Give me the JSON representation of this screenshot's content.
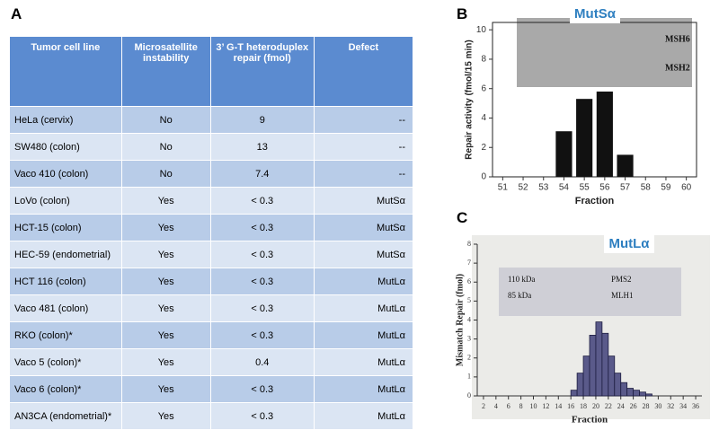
{
  "panels": [
    "A",
    "B",
    "C"
  ],
  "table": {
    "header": [
      "Tumor cell line",
      "Microsatellite instability",
      "3’ G-T heteroduplex repair (fmol)",
      "Defect"
    ],
    "rows": [
      [
        "HeLa (cervix)",
        "No",
        "9",
        "--"
      ],
      [
        "SW480 (colon)",
        "No",
        "13",
        "--"
      ],
      [
        "Vaco 410 (colon)",
        "No",
        "7.4",
        "--"
      ],
      [
        "LoVo (colon)",
        "Yes",
        "< 0.3",
        "MutSα"
      ],
      [
        "HCT-15 (colon)",
        "Yes",
        "< 0.3",
        "MutSα"
      ],
      [
        "HEC-59 (endometrial)",
        "Yes",
        "< 0.3",
        "MutSα"
      ],
      [
        "HCT 116 (colon)",
        "Yes",
        "< 0.3",
        "MutLα"
      ],
      [
        "Vaco 481 (colon)",
        "Yes",
        "< 0.3",
        "MutLα"
      ],
      [
        "RKO (colon)*",
        "Yes",
        "< 0.3",
        "MutLα"
      ],
      [
        "Vaco 5 (colon)*",
        "Yes",
        "0.4",
        "MutLα"
      ],
      [
        "Vaco 6 (colon)*",
        "Yes",
        "< 0.3",
        "MutLα"
      ],
      [
        "AN3CA (endometrial)*",
        "Yes",
        "< 0.3",
        "MutLα"
      ]
    ]
  },
  "chart_data": [
    {
      "type": "bar",
      "title": "MutSα",
      "x_label": "Fraction",
      "y_label": "Repair activity (fmol/15 min)",
      "x": [
        54,
        55,
        56,
        57
      ],
      "values": [
        3.1,
        5.3,
        5.8,
        1.5
      ],
      "color": "#111111",
      "xlim": [
        50.5,
        60.5
      ],
      "xticks": [
        51,
        52,
        53,
        54,
        55,
        56,
        57,
        58,
        59,
        60
      ],
      "ylim": [
        0,
        10.5
      ],
      "yticks": [
        0,
        2,
        4,
        6,
        8,
        10
      ],
      "annotations": [
        "MSH6",
        "MSH2"
      ]
    },
    {
      "type": "histogram",
      "title": "MutLα",
      "x_label": "Fraction",
      "y_label": "Mismatch Repair (fmol)",
      "bins": [
        16,
        17,
        18,
        19,
        20,
        21,
        22,
        23,
        24,
        25,
        26,
        27,
        28,
        29
      ],
      "values": [
        0.3,
        1.2,
        2.1,
        3.2,
        3.9,
        3.3,
        2.1,
        1.2,
        0.7,
        0.4,
        0.3,
        0.2,
        0.1
      ],
      "color": "#5a5a8a",
      "xlim": [
        1,
        37
      ],
      "xticks": [
        2,
        4,
        6,
        8,
        10,
        12,
        14,
        16,
        18,
        20,
        22,
        24,
        26,
        28,
        30,
        32,
        34,
        36
      ],
      "ylim": [
        0,
        8
      ],
      "yticks": [
        0,
        1,
        2,
        3,
        4,
        5,
        6,
        7,
        8
      ],
      "annotations": [
        "110 kDa",
        "PMS2",
        "85 kDa",
        "MLH1"
      ]
    }
  ]
}
